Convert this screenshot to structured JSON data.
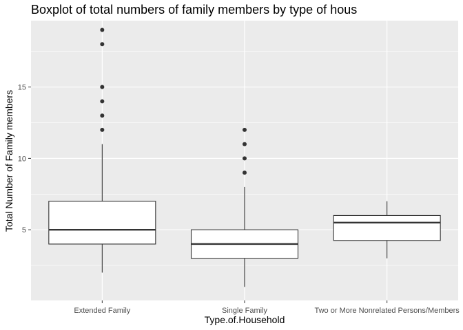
{
  "chart_data": {
    "type": "boxplot",
    "title": "Boxplot of total numbers of family members by type of hous",
    "xlabel": "Type.of.Household",
    "ylabel": "Total Number of Family members",
    "categories": [
      "Extended Family",
      "Single Family",
      "Two or More Nonrelated Persons/Members"
    ],
    "boxes": [
      {
        "category": "Extended Family",
        "min": 2,
        "q1": 4,
        "median": 5,
        "q3": 7,
        "max": 11,
        "outliers": [
          12,
          13,
          14,
          15,
          18,
          19
        ]
      },
      {
        "category": "Single Family",
        "min": 1,
        "q1": 3,
        "median": 4,
        "q3": 5,
        "max": 8,
        "outliers": [
          9,
          10,
          11,
          12
        ]
      },
      {
        "category": "Two or More Nonrelated Persons/Members",
        "min": 3,
        "q1": 4.25,
        "median": 5.5,
        "q3": 6,
        "max": 7,
        "outliers": []
      }
    ],
    "ylim": [
      0.05,
      19.65
    ],
    "yticks": [
      5,
      10,
      15
    ],
    "ytick_labels": [
      "5",
      "10",
      "15"
    ],
    "grid": true,
    "colors": {
      "panel_bg": "#ebebeb",
      "grid_major": "#ffffff",
      "box_fill": "#ffffff",
      "box_line": "#333333",
      "outlier": "#333333"
    }
  }
}
